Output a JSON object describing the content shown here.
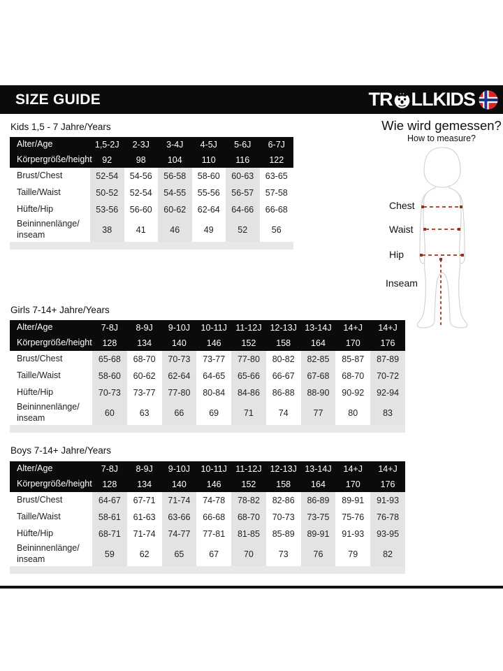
{
  "title_bar": {
    "title": "SIZE GUIDE",
    "brand_pre": "TR",
    "brand_post": "LLKIDS"
  },
  "measure": {
    "heading_de": "Wie wird gemessen?",
    "heading_en": "How to measure?",
    "labels": {
      "chest": "Chest",
      "waist": "Waist",
      "hip": "Hip",
      "inseam": "Inseam"
    }
  },
  "tables": {
    "kids": {
      "title": "Kids 1,5 - 7 Jahre/Years",
      "header_rows": [
        {
          "label": "Alter/Age",
          "values": [
            "1,5-2J",
            "2-3J",
            "3-4J",
            "4-5J",
            "5-6J",
            "6-7J"
          ]
        },
        {
          "label": "Körpergröße/height",
          "values": [
            "92",
            "98",
            "104",
            "110",
            "116",
            "122"
          ]
        }
      ],
      "body_rows": [
        {
          "label": "Brust/Chest",
          "values": [
            "52-54",
            "54-56",
            "56-58",
            "58-60",
            "60-63",
            "63-65"
          ]
        },
        {
          "label": "Taille/Waist",
          "values": [
            "50-52",
            "52-54",
            "54-55",
            "55-56",
            "56-57",
            "57-58"
          ]
        },
        {
          "label": "Hüfte/Hip",
          "values": [
            "53-56",
            "56-60",
            "60-62",
            "62-64",
            "64-66",
            "66-68"
          ]
        },
        {
          "label": "Beininnenlänge/\ninseam",
          "values": [
            "38",
            "41",
            "46",
            "49",
            "52",
            "56"
          ]
        }
      ]
    },
    "girls": {
      "title": "Girls 7-14+ Jahre/Years",
      "header_rows": [
        {
          "label": "Alter/Age",
          "values": [
            "7-8J",
            "8-9J",
            "9-10J",
            "10-11J",
            "11-12J",
            "12-13J",
            "13-14J",
            "14+J",
            "14+J"
          ]
        },
        {
          "label": "Körpergröße/height",
          "values": [
            "128",
            "134",
            "140",
            "146",
            "152",
            "158",
            "164",
            "170",
            "176"
          ]
        }
      ],
      "body_rows": [
        {
          "label": "Brust/Chest",
          "values": [
            "65-68",
            "68-70",
            "70-73",
            "73-77",
            "77-80",
            "80-82",
            "82-85",
            "85-87",
            "87-89"
          ]
        },
        {
          "label": "Taille/Waist",
          "values": [
            "58-60",
            "60-62",
            "62-64",
            "64-65",
            "65-66",
            "66-67",
            "67-68",
            "68-70",
            "70-72"
          ]
        },
        {
          "label": "Hüfte/Hip",
          "values": [
            "70-73",
            "73-77",
            "77-80",
            "80-84",
            "84-86",
            "86-88",
            "88-90",
            "90-92",
            "92-94"
          ]
        },
        {
          "label": "Beininnenlänge/\ninseam",
          "values": [
            "60",
            "63",
            "66",
            "69",
            "71",
            "74",
            "77",
            "80",
            "83"
          ]
        }
      ]
    },
    "boys": {
      "title": "Boys 7-14+ Jahre/Years",
      "header_rows": [
        {
          "label": "Alter/Age",
          "values": [
            "7-8J",
            "8-9J",
            "9-10J",
            "10-11J",
            "11-12J",
            "12-13J",
            "13-14J",
            "14+J",
            "14+J"
          ]
        },
        {
          "label": "Körpergröße/height",
          "values": [
            "128",
            "134",
            "140",
            "146",
            "152",
            "158",
            "164",
            "170",
            "176"
          ]
        }
      ],
      "body_rows": [
        {
          "label": "Brust/Chest",
          "values": [
            "64-67",
            "67-71",
            "71-74",
            "74-78",
            "78-82",
            "82-86",
            "86-89",
            "89-91",
            "91-93"
          ]
        },
        {
          "label": "Taille/Waist",
          "values": [
            "58-61",
            "61-63",
            "63-66",
            "66-68",
            "68-70",
            "70-73",
            "73-75",
            "75-76",
            "76-78"
          ]
        },
        {
          "label": "Hüfte/Hip",
          "values": [
            "68-71",
            "71-74",
            "74-77",
            "77-81",
            "81-85",
            "85-89",
            "89-91",
            "91-93",
            "93-95"
          ]
        },
        {
          "label": "Beininnenlänge/\ninseam",
          "values": [
            "59",
            "62",
            "65",
            "67",
            "70",
            "73",
            "76",
            "79",
            "82"
          ]
        }
      ]
    }
  },
  "colors": {
    "header_black": "#0b0b0b",
    "column_shade": "#e3e3e3",
    "footer_strip": "#e8e8e8",
    "measure_line_red": "#b14a2e",
    "measure_dot_red": "#8e3420",
    "flag_red": "#d5262e",
    "flag_blue": "#22338f"
  }
}
